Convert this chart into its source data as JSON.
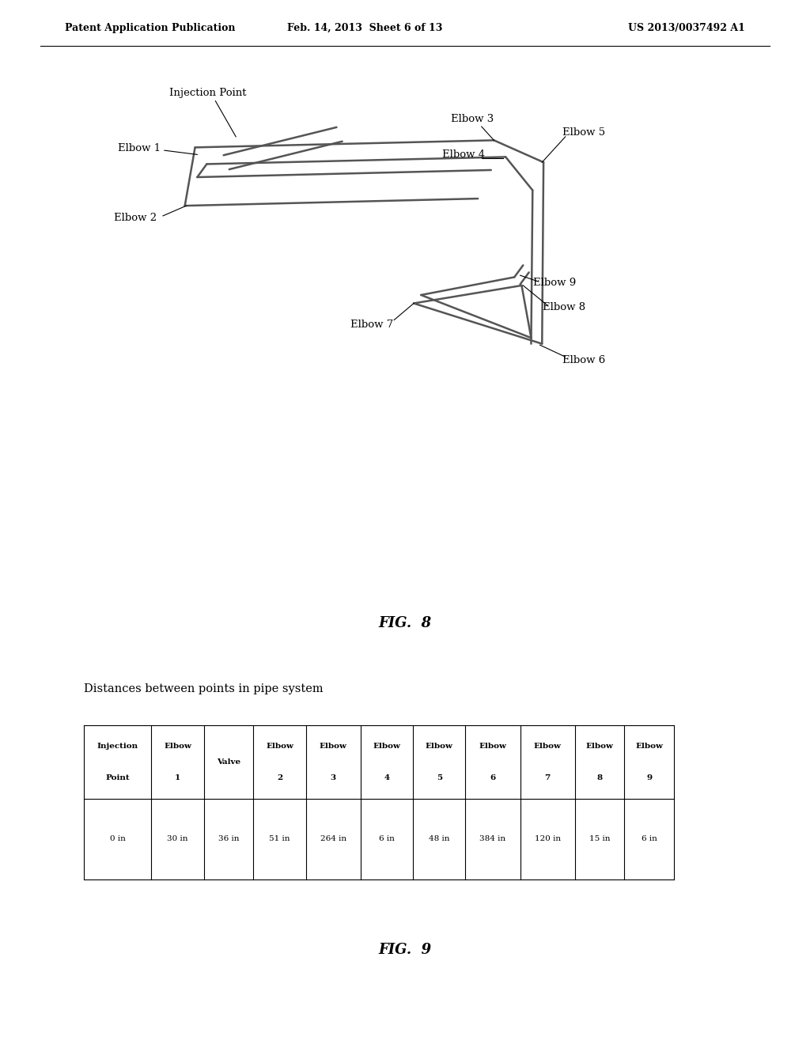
{
  "page_header_left": "Patent Application Publication",
  "page_header_mid": "Feb. 14, 2013  Sheet 6 of 13",
  "page_header_right": "US 2013/0037492 A1",
  "fig8_label": "FIG.  8",
  "fig9_label": "FIG.  9",
  "table_title": "Distances between points in pipe system",
  "table_headers_line1": [
    "Injection",
    "Elbow",
    "Valve",
    "Elbow",
    "Elbow",
    "Elbow",
    "Elbow",
    "Elbow",
    "Elbow",
    "Elbow",
    "Elbow"
  ],
  "table_headers_line2": [
    "Point",
    "1",
    "",
    "2",
    "3",
    "4",
    "5",
    "6",
    "7",
    "8",
    "9"
  ],
  "table_values": [
    "0 in",
    "30 in",
    "36 in",
    "51 in",
    "264 in",
    "6 in",
    "48 in",
    "384 in",
    "120 in",
    "15 in",
    "6 in"
  ],
  "pipe_color": "#555555",
  "background_color": "#ffffff"
}
